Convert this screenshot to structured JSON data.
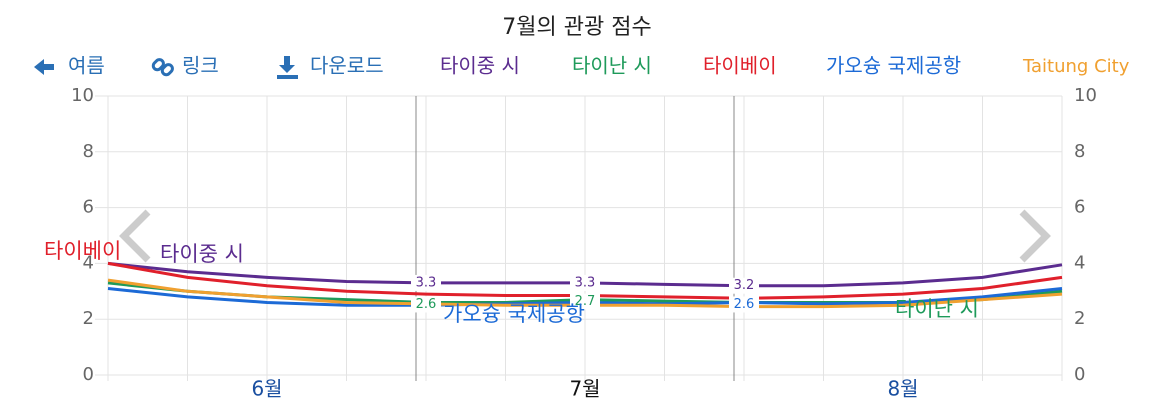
{
  "toolbar": {
    "back": "여름",
    "link": "링크",
    "download": "다운로드"
  },
  "chart_data": {
    "type": "line",
    "title": "7월의 관광 점수",
    "categories": [
      null,
      null,
      "6월",
      null,
      null,
      null,
      "7월",
      null,
      null,
      null,
      "8월",
      null,
      null
    ],
    "ylim": [
      0,
      10
    ],
    "yticks": [
      0,
      2,
      4,
      6,
      8,
      10
    ],
    "grid": true,
    "series": [
      {
        "name": "타이중 시",
        "color": "#5b2c8f",
        "values": [
          4.0,
          3.7,
          3.5,
          3.35,
          3.3,
          3.3,
          3.3,
          3.25,
          3.2,
          3.2,
          3.3,
          3.5,
          3.95
        ],
        "value_labels": [
          null,
          null,
          null,
          null,
          "3.3",
          null,
          "3.3",
          null,
          "3.2",
          null,
          null,
          null,
          null
        ]
      },
      {
        "name": "타이난 시",
        "color": "#1e9a5a",
        "values": [
          3.3,
          3.0,
          2.8,
          2.7,
          2.6,
          2.6,
          2.7,
          2.65,
          2.6,
          2.6,
          2.6,
          2.7,
          3.0
        ],
        "value_labels": [
          null,
          null,
          null,
          null,
          "2.6",
          null,
          "2.7",
          null,
          null,
          null,
          null,
          null,
          null
        ]
      },
      {
        "name": "타이베이",
        "color": "#e0202b",
        "values": [
          4.0,
          3.5,
          3.2,
          3.0,
          2.9,
          2.85,
          2.85,
          2.8,
          2.75,
          2.8,
          2.9,
          3.1,
          3.5
        ]
      },
      {
        "name": "가오슝 국제공항",
        "color": "#1c6ad6",
        "values": [
          3.1,
          2.8,
          2.6,
          2.5,
          2.5,
          2.55,
          2.6,
          2.55,
          2.6,
          2.55,
          2.6,
          2.8,
          3.1
        ],
        "value_labels": [
          null,
          null,
          null,
          null,
          null,
          null,
          null,
          null,
          "2.6",
          null,
          null,
          null,
          null
        ]
      },
      {
        "name": "Taitung City",
        "color": "#f0a030",
        "values": [
          3.4,
          3.0,
          2.8,
          2.6,
          2.55,
          2.5,
          2.5,
          2.5,
          2.45,
          2.45,
          2.5,
          2.7,
          2.9
        ]
      }
    ]
  }
}
